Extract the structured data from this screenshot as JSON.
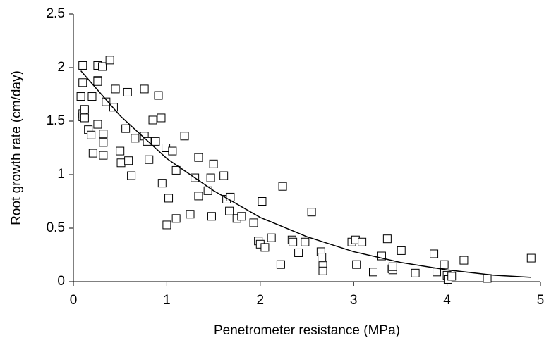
{
  "chart_data": {
    "type": "scatter",
    "x_label": "Penetrometer resistance (MPa)",
    "y_label": "Root growth rate (cm/day)",
    "xlim": [
      0,
      5
    ],
    "xticks": [
      0,
      1,
      2,
      3,
      4,
      5
    ],
    "ylim": [
      0,
      2.5
    ],
    "yticks": [
      0,
      0.5,
      1,
      1.5,
      2,
      2.5
    ],
    "grid": false,
    "series": [
      {
        "type": "scatter",
        "marker": "square",
        "color": "#000000",
        "x": [
          0.1,
          0.1,
          0.08,
          0.1,
          0.1,
          0.12,
          0.12,
          0.16,
          0.19,
          0.2,
          0.21,
          0.26,
          0.26,
          0.26,
          0.26,
          0.31,
          0.32,
          0.32,
          0.32,
          0.35,
          0.39,
          0.43,
          0.45,
          0.5,
          0.51,
          0.56,
          0.58,
          0.59,
          0.62,
          0.66,
          0.76,
          0.76,
          0.79,
          0.81,
          0.85,
          0.88,
          0.91,
          0.94,
          0.95,
          1.0,
          0.99,
          1.02,
          1.06,
          1.1,
          1.1,
          1.19,
          1.25,
          1.3,
          1.34,
          1.34,
          1.44,
          1.47,
          1.48,
          1.5,
          1.61,
          1.64,
          1.68,
          1.67,
          1.75,
          1.8,
          1.93,
          1.98,
          2.0,
          2.02,
          2.05,
          2.12,
          2.22,
          2.24,
          2.34,
          2.35,
          2.41,
          2.48,
          2.55,
          2.65,
          2.66,
          2.67,
          2.67,
          2.98,
          3.02,
          3.03,
          3.09,
          3.21,
          3.3,
          3.36,
          3.41,
          3.42,
          3.42,
          3.51,
          3.66,
          3.86,
          3.89,
          3.97,
          4.0,
          4.01,
          4.05,
          4.18,
          4.43,
          4.9
        ],
        "values": [
          2.02,
          1.86,
          1.73,
          1.57,
          1.54,
          1.61,
          1.53,
          1.42,
          1.37,
          1.73,
          1.2,
          2.02,
          1.88,
          1.87,
          1.47,
          2.01,
          1.38,
          1.3,
          1.18,
          1.68,
          2.07,
          1.63,
          1.8,
          1.22,
          1.11,
          1.43,
          1.77,
          1.13,
          0.99,
          1.34,
          1.8,
          1.36,
          1.31,
          1.14,
          1.51,
          1.31,
          1.74,
          1.53,
          0.92,
          0.53,
          1.25,
          0.78,
          1.22,
          1.04,
          0.59,
          1.36,
          0.63,
          0.97,
          1.16,
          0.8,
          0.85,
          0.97,
          0.61,
          1.1,
          0.99,
          0.77,
          0.79,
          0.66,
          0.59,
          0.61,
          0.55,
          0.38,
          0.35,
          0.75,
          0.32,
          0.41,
          0.16,
          0.89,
          0.39,
          0.37,
          0.27,
          0.37,
          0.65,
          0.28,
          0.23,
          0.15,
          0.1,
          0.37,
          0.39,
          0.16,
          0.37,
          0.09,
          0.24,
          0.4,
          0.12,
          0.11,
          0.14,
          0.29,
          0.08,
          0.26,
          0.09,
          0.16,
          0.06,
          0.02,
          0.05,
          0.2,
          0.03,
          0.22
        ]
      },
      {
        "type": "line",
        "color": "#000000",
        "x": [
          0.08,
          0.5,
          1,
          1.5,
          2,
          2.5,
          3,
          3.5,
          4,
          4.5,
          4.9
        ],
        "values": [
          1.97,
          1.55,
          1.15,
          0.85,
          0.6,
          0.42,
          0.28,
          0.18,
          0.11,
          0.06,
          0.04
        ]
      }
    ]
  }
}
